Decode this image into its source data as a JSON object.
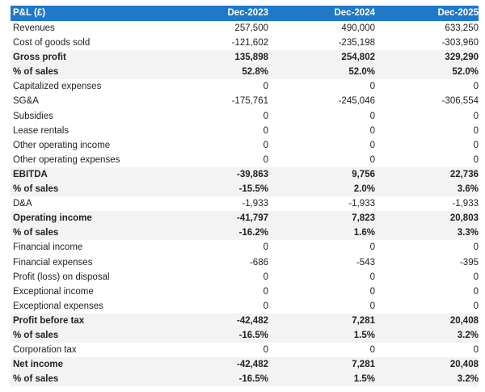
{
  "table": {
    "header": [
      "P&L (£)",
      "Dec-2023",
      "Dec-2024",
      "Dec-2025"
    ],
    "header_color": "#1f78c8",
    "rows": [
      {
        "label": "Revenues",
        "values": [
          "257,500",
          "490,000",
          "633,250"
        ],
        "bold": false
      },
      {
        "label": "Cost of goods sold",
        "values": [
          "-121,602",
          "-235,198",
          "-303,960"
        ],
        "bold": false
      },
      {
        "label": "Gross profit",
        "values": [
          "135,898",
          "254,802",
          "329,290"
        ],
        "bold": true
      },
      {
        "label": "% of sales",
        "values": [
          "52.8%",
          "52.0%",
          "52.0%"
        ],
        "bold": true
      },
      {
        "label": "Capitalized expenses",
        "values": [
          "0",
          "0",
          "0"
        ],
        "bold": false
      },
      {
        "label": "SG&A",
        "values": [
          "-175,761",
          "-245,046",
          "-306,554"
        ],
        "bold": false
      },
      {
        "label": "Subsidies",
        "values": [
          "0",
          "0",
          "0"
        ],
        "bold": false
      },
      {
        "label": "Lease rentals",
        "values": [
          "0",
          "0",
          "0"
        ],
        "bold": false
      },
      {
        "label": "Other operating income",
        "values": [
          "0",
          "0",
          "0"
        ],
        "bold": false
      },
      {
        "label": "Other operating expenses",
        "values": [
          "0",
          "0",
          "0"
        ],
        "bold": false
      },
      {
        "label": "EBITDA",
        "values": [
          "-39,863",
          "9,756",
          "22,736"
        ],
        "bold": true
      },
      {
        "label": "% of sales",
        "values": [
          "-15.5%",
          "2.0%",
          "3.6%"
        ],
        "bold": true
      },
      {
        "label": "D&A",
        "values": [
          "-1,933",
          "-1,933",
          "-1,933"
        ],
        "bold": false
      },
      {
        "label": "Operating income",
        "values": [
          "-41,797",
          "7,823",
          "20,803"
        ],
        "bold": true
      },
      {
        "label": "% of sales",
        "values": [
          "-16.2%",
          "1.6%",
          "3.3%"
        ],
        "bold": true
      },
      {
        "label": "Financial income",
        "values": [
          "0",
          "0",
          "0"
        ],
        "bold": false
      },
      {
        "label": "Financial expenses",
        "values": [
          "-686",
          "-543",
          "-395"
        ],
        "bold": false
      },
      {
        "label": "Profit (loss) on disposal",
        "values": [
          "0",
          "0",
          "0"
        ],
        "bold": false
      },
      {
        "label": "Exceptional income",
        "values": [
          "0",
          "0",
          "0"
        ],
        "bold": false
      },
      {
        "label": "Exceptional expenses",
        "values": [
          "0",
          "0",
          "0"
        ],
        "bold": false
      },
      {
        "label": "Profit before tax",
        "values": [
          "-42,482",
          "7,281",
          "20,408"
        ],
        "bold": true
      },
      {
        "label": "% of sales",
        "values": [
          "-16.5%",
          "1.5%",
          "3.2%"
        ],
        "bold": true
      },
      {
        "label": "Corporation tax",
        "values": [
          "0",
          "0",
          "0"
        ],
        "bold": false
      },
      {
        "label": "Net income",
        "values": [
          "-42,482",
          "7,281",
          "20,408"
        ],
        "bold": true
      },
      {
        "label": "% of sales",
        "values": [
          "-16.5%",
          "1.5%",
          "3.2%"
        ],
        "bold": true
      }
    ]
  }
}
